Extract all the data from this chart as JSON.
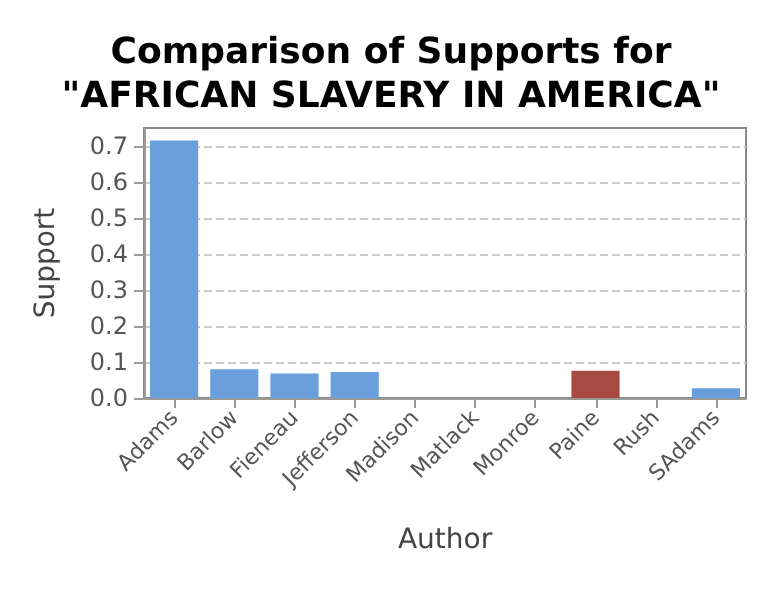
{
  "chart_data": {
    "type": "bar",
    "title": "Comparison of Supports for\n\"AFRICAN SLAVERY IN AMERICA\"",
    "xlabel": "Author",
    "ylabel": "Support",
    "categories": [
      "Adams",
      "Barlow",
      "Fieneau",
      "Jefferson",
      "Madison",
      "Matlack",
      "Monroe",
      "Paine",
      "Rush",
      "SAdams"
    ],
    "values": [
      0.715,
      0.08,
      0.068,
      0.072,
      0,
      0,
      0,
      0.076,
      0,
      0.027
    ],
    "colors": [
      "#689fdc",
      "#689fdc",
      "#689fdc",
      "#689fdc",
      "#689fdc",
      "#689fdc",
      "#689fdc",
      "#a84a44",
      "#689fdc",
      "#689fdc"
    ],
    "ylim": [
      0,
      0.75
    ],
    "yticks": [
      {
        "value": 0,
        "label": "0.0"
      },
      0.1,
      0.2,
      0.3,
      0.4,
      0.5,
      0.6,
      0.7
    ],
    "grid": "y"
  }
}
